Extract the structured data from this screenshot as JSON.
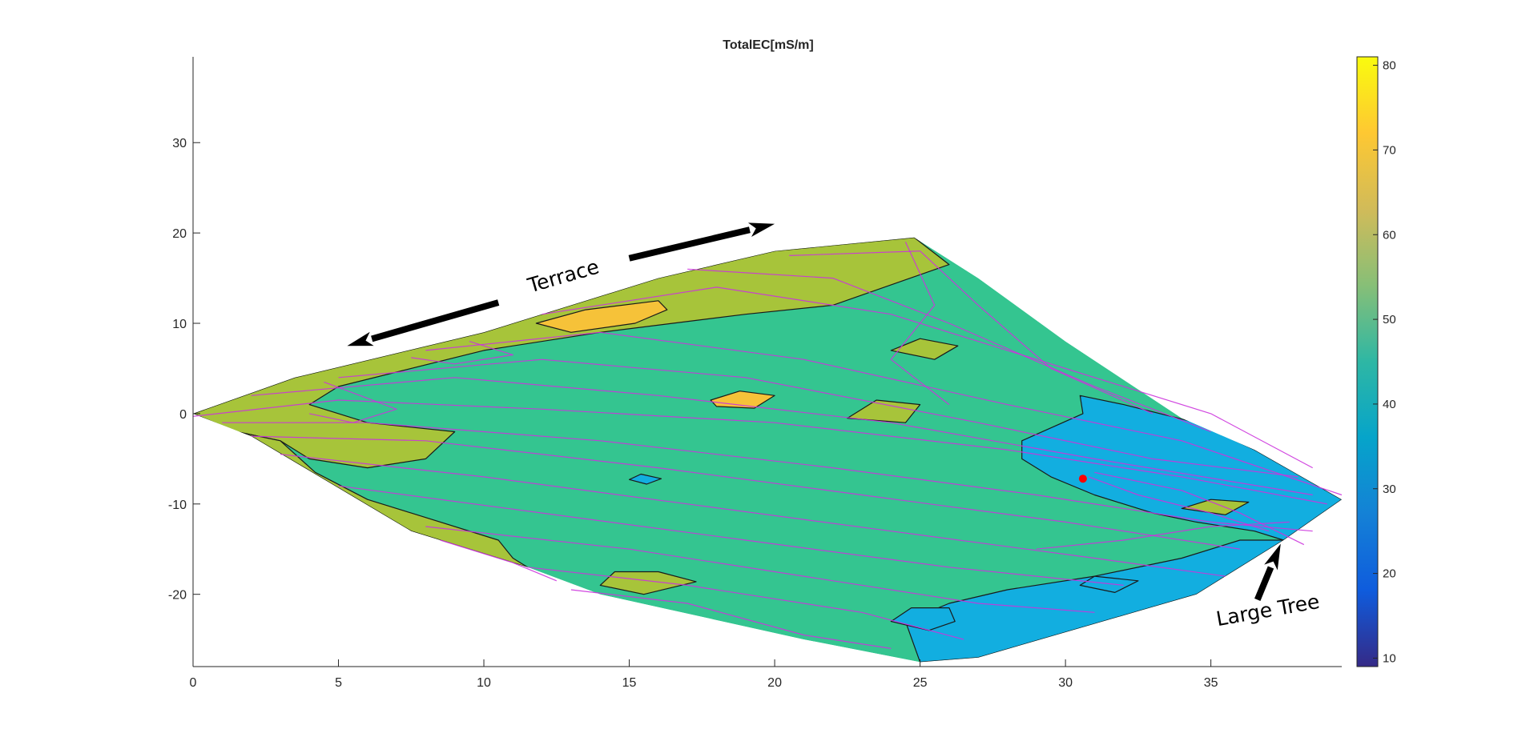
{
  "chart_data": {
    "type": "contour",
    "title": "TotalEC[mS/m]",
    "xlabel": "",
    "ylabel": "",
    "xlim": [
      0,
      39.5
    ],
    "ylim": [
      -28,
      39.5
    ],
    "x_ticks": [
      0,
      5,
      10,
      15,
      20,
      25,
      30,
      35
    ],
    "y_ticks": [
      -20,
      -10,
      0,
      10,
      20,
      30
    ],
    "grid": false,
    "colorbar": {
      "label": "",
      "range": [
        9,
        81
      ],
      "ticks": [
        10,
        20,
        30,
        40,
        50,
        60,
        70,
        80
      ],
      "colormap": "parula",
      "stops": [
        "#352a87",
        "#0f5cdd",
        "#1481d6",
        "#06a4ca",
        "#2eb7a4",
        "#87bf77",
        "#d1bb59",
        "#fec832",
        "#f9fb0e"
      ]
    },
    "region_outline": [
      [
        0,
        0
      ],
      [
        3.5,
        4
      ],
      [
        10,
        9
      ],
      [
        16,
        15
      ],
      [
        20,
        18
      ],
      [
        24.8,
        19.5
      ],
      [
        27,
        15
      ],
      [
        30,
        8
      ],
      [
        34,
        -0.5
      ],
      [
        36.5,
        -4
      ],
      [
        39.5,
        -9.5
      ],
      [
        37.5,
        -14
      ],
      [
        34.5,
        -20
      ],
      [
        27,
        -27
      ],
      [
        25,
        -27.5
      ],
      [
        21,
        -25
      ],
      [
        14,
        -20
      ],
      [
        11.5,
        -17
      ],
      [
        7.5,
        -13
      ],
      [
        2,
        -2.5
      ]
    ],
    "filled_regions": [
      {
        "level": 47,
        "color": "#34c590",
        "points": [
          [
            0,
            0
          ],
          [
            3.5,
            4
          ],
          [
            10,
            9
          ],
          [
            16,
            15
          ],
          [
            20,
            18
          ],
          [
            24.8,
            19.5
          ],
          [
            27,
            15
          ],
          [
            30,
            8
          ],
          [
            34,
            -0.5
          ],
          [
            36.5,
            -4
          ],
          [
            39.5,
            -9.5
          ],
          [
            37.5,
            -14
          ],
          [
            34.5,
            -20
          ],
          [
            27,
            -27
          ],
          [
            25,
            -27.5
          ],
          [
            21,
            -25
          ],
          [
            14,
            -20
          ],
          [
            11.5,
            -17
          ],
          [
            7.5,
            -13
          ],
          [
            2,
            -2.5
          ]
        ]
      },
      {
        "level": 58,
        "color": "#a7c43a",
        "points": [
          [
            0,
            0
          ],
          [
            3.5,
            4
          ],
          [
            10,
            9
          ],
          [
            16,
            15
          ],
          [
            20,
            18
          ],
          [
            24.8,
            19.5
          ],
          [
            26,
            16.5
          ],
          [
            22,
            12
          ],
          [
            19,
            11
          ],
          [
            14,
            9
          ],
          [
            10,
            7
          ],
          [
            5,
            3
          ],
          [
            4,
            1
          ],
          [
            6,
            -1
          ],
          [
            9,
            -2
          ],
          [
            8,
            -5
          ],
          [
            6,
            -6
          ],
          [
            4,
            -5
          ],
          [
            3,
            -3
          ],
          [
            1.5,
            -2
          ]
        ]
      },
      {
        "level": 58,
        "color": "#a7c43a",
        "points": [
          [
            0.6,
            -1
          ],
          [
            1.5,
            -2
          ],
          [
            3,
            -3
          ],
          [
            4.2,
            -6.5
          ],
          [
            6,
            -9.5
          ],
          [
            7.5,
            -11
          ],
          [
            10.5,
            -14
          ],
          [
            11,
            -16
          ],
          [
            11.5,
            -17
          ],
          [
            7.5,
            -13
          ],
          [
            2,
            -2.5
          ]
        ]
      },
      {
        "level": 38,
        "color": "#12aee0",
        "points": [
          [
            25,
            -27.5
          ],
          [
            24.5,
            -23
          ],
          [
            26,
            -21
          ],
          [
            28,
            -19.5
          ],
          [
            31,
            -18
          ],
          [
            34,
            -16
          ],
          [
            36,
            -14
          ],
          [
            37.5,
            -14
          ],
          [
            34.5,
            -20
          ],
          [
            27,
            -27
          ]
        ]
      },
      {
        "level": 38,
        "color": "#12aee0",
        "points": [
          [
            39.5,
            -9.5
          ],
          [
            36.5,
            -4
          ],
          [
            34.5,
            -1
          ],
          [
            32,
            1
          ],
          [
            30.5,
            2
          ],
          [
            30.6,
            0
          ],
          [
            28.5,
            -3
          ],
          [
            28.5,
            -5
          ],
          [
            29.5,
            -7
          ],
          [
            31,
            -9
          ],
          [
            33,
            -11
          ],
          [
            34.5,
            -12
          ],
          [
            36.5,
            -13
          ],
          [
            37.5,
            -14
          ]
        ]
      },
      {
        "level": 66,
        "color": "#f6c239",
        "points": [
          [
            11.8,
            10
          ],
          [
            13.5,
            11.5
          ],
          [
            16,
            12.5
          ],
          [
            16.3,
            11.5
          ],
          [
            15.2,
            10
          ],
          [
            13,
            9
          ]
        ]
      },
      {
        "level": 66,
        "color": "#f6c239",
        "points": [
          [
            17.8,
            1.5
          ],
          [
            18.8,
            2.5
          ],
          [
            20,
            2
          ],
          [
            19.3,
            0.6
          ],
          [
            18,
            0.8
          ]
        ]
      },
      {
        "level": 58,
        "color": "#a7c43a",
        "points": [
          [
            14,
            -19
          ],
          [
            14.5,
            -17.5
          ],
          [
            16,
            -17.5
          ],
          [
            17.3,
            -18.6
          ],
          [
            15.5,
            -20
          ]
        ]
      },
      {
        "level": 58,
        "color": "#a7c43a",
        "points": [
          [
            22.5,
            -0.5
          ],
          [
            23.5,
            1.5
          ],
          [
            25,
            1
          ],
          [
            24.5,
            -1
          ]
        ]
      },
      {
        "level": 58,
        "color": "#a7c43a",
        "points": [
          [
            24,
            7
          ],
          [
            25,
            8.3
          ],
          [
            26.3,
            7.5
          ],
          [
            25.5,
            6
          ]
        ]
      },
      {
        "level": 58,
        "color": "#a7c43a",
        "points": [
          [
            34,
            -10.5
          ],
          [
            35,
            -9.5
          ],
          [
            36.3,
            -9.8
          ],
          [
            35.5,
            -11.2
          ]
        ]
      },
      {
        "level": 38,
        "color": "#12aee0",
        "points": [
          [
            24,
            -23
          ],
          [
            24.7,
            -21.5
          ],
          [
            26,
            -21.5
          ],
          [
            26.2,
            -23
          ],
          [
            25.3,
            -24
          ]
        ]
      },
      {
        "level": 38,
        "color": "#12aee0",
        "points": [
          [
            30.5,
            -19
          ],
          [
            31,
            -18
          ],
          [
            32.5,
            -18.5
          ],
          [
            31.7,
            -19.8
          ]
        ]
      },
      {
        "level": 38,
        "color": "#12aee0",
        "points": [
          [
            15,
            -7.3
          ],
          [
            15.4,
            -6.7
          ],
          [
            16.1,
            -7.2
          ],
          [
            15.6,
            -7.8
          ]
        ]
      }
    ],
    "survey_paths": [
      [
        [
          0,
          -0.3
        ],
        [
          5,
          1.5
        ],
        [
          12,
          0.5
        ],
        [
          20,
          -1
        ],
        [
          28,
          -4
        ],
        [
          34,
          -7
        ],
        [
          39,
          -10
        ]
      ],
      [
        [
          1,
          -1
        ],
        [
          6,
          -1
        ],
        [
          14,
          -3
        ],
        [
          22,
          -6
        ],
        [
          29,
          -9
        ],
        [
          35,
          -12
        ],
        [
          38.5,
          -13
        ]
      ],
      [
        [
          2,
          -2.5
        ],
        [
          8,
          -3
        ],
        [
          16,
          -6
        ],
        [
          23,
          -9
        ],
        [
          30,
          -12
        ],
        [
          36,
          -15
        ]
      ],
      [
        [
          3,
          -4.5
        ],
        [
          10,
          -7
        ],
        [
          17,
          -10
        ],
        [
          24,
          -13
        ],
        [
          31,
          -16
        ],
        [
          35.5,
          -18
        ]
      ],
      [
        [
          5,
          -8
        ],
        [
          12,
          -11
        ],
        [
          19,
          -14
        ],
        [
          26,
          -17
        ],
        [
          32,
          -19
        ]
      ],
      [
        [
          8,
          -12.5
        ],
        [
          15,
          -15
        ],
        [
          21,
          -18
        ],
        [
          27,
          -21
        ],
        [
          31,
          -22
        ]
      ],
      [
        [
          11.5,
          -17
        ],
        [
          17,
          -19
        ],
        [
          23,
          -22
        ],
        [
          26.5,
          -25
        ]
      ],
      [
        [
          2,
          2
        ],
        [
          9,
          4
        ],
        [
          16,
          2
        ],
        [
          24,
          -1
        ],
        [
          31,
          -5
        ],
        [
          38.5,
          -9
        ]
      ],
      [
        [
          5,
          4
        ],
        [
          12,
          6
        ],
        [
          19,
          4
        ],
        [
          27,
          -1
        ],
        [
          33,
          -5
        ],
        [
          38,
          -7
        ]
      ],
      [
        [
          8,
          7
        ],
        [
          14,
          9
        ],
        [
          21,
          6
        ],
        [
          28,
          1
        ],
        [
          34,
          -3
        ],
        [
          39.5,
          -9
        ]
      ],
      [
        [
          12,
          11
        ],
        [
          18,
          14
        ],
        [
          24,
          11
        ],
        [
          30,
          5
        ],
        [
          35,
          0
        ],
        [
          38.5,
          -6
        ]
      ],
      [
        [
          17,
          16
        ],
        [
          22,
          15
        ],
        [
          26,
          10
        ],
        [
          31,
          3
        ],
        [
          35,
          -2
        ]
      ],
      [
        [
          20.5,
          17.5
        ],
        [
          25,
          18
        ],
        [
          27,
          12
        ],
        [
          29.5,
          5
        ],
        [
          33,
          0
        ]
      ],
      [
        [
          9.5,
          8
        ],
        [
          11,
          6.5
        ],
        [
          9,
          5.5
        ],
        [
          7.5,
          6.2
        ]
      ],
      [
        [
          4.5,
          3.5
        ],
        [
          7,
          0.5
        ],
        [
          5.5,
          -1
        ],
        [
          4,
          0
        ]
      ],
      [
        [
          24.5,
          19
        ],
        [
          25.5,
          12
        ],
        [
          24,
          6
        ],
        [
          26,
          1
        ]
      ],
      [
        [
          24,
          -26
        ],
        [
          21,
          -24.5
        ],
        [
          17,
          -21
        ],
        [
          13,
          -19.5
        ]
      ],
      [
        [
          12.5,
          -18.5
        ],
        [
          11,
          -16.5
        ],
        [
          8.5,
          -14
        ]
      ],
      [
        [
          29,
          -15
        ],
        [
          32,
          -14
        ],
        [
          35,
          -12.5
        ],
        [
          37.7,
          -12
        ]
      ],
      [
        [
          30.8,
          -7
        ],
        [
          32.5,
          -9
        ],
        [
          35,
          -11
        ],
        [
          37,
          -13
        ]
      ],
      [
        [
          31,
          -6.5
        ],
        [
          34,
          -8.5
        ],
        [
          36,
          -11
        ],
        [
          38.2,
          -14.5
        ]
      ]
    ],
    "highlight_point": {
      "x": 30.6,
      "y": -7.2,
      "color": "#ff0000"
    },
    "annotations": [
      {
        "text": "Terrace",
        "x": 12.8,
        "y": 14.5,
        "angle": -16
      },
      {
        "text": "Large Tree",
        "x": 37,
        "y": -22.5,
        "angle": -10
      }
    ],
    "arrows": [
      {
        "name": "terrace-arrow-left",
        "from": [
          10.5,
          12.3
        ],
        "to": [
          5.3,
          7.5
        ]
      },
      {
        "name": "terrace-arrow-right",
        "from": [
          15,
          17.2
        ],
        "to": [
          20,
          21
        ]
      },
      {
        "name": "tree-arrow",
        "from": [
          36.6,
          -20.6
        ],
        "to": [
          37.4,
          -14.4
        ]
      }
    ]
  }
}
